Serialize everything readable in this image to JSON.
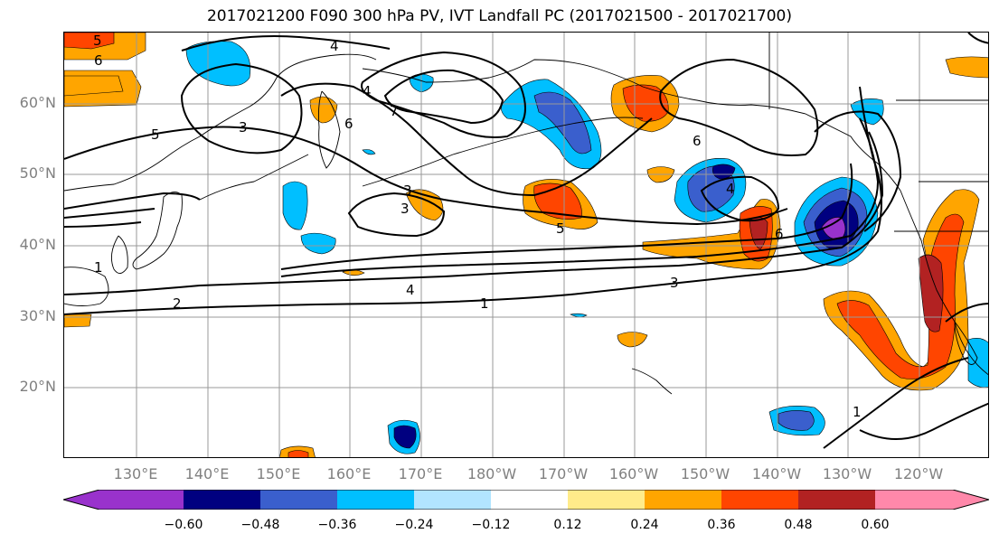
{
  "title": "2017021200 F090 300 hPa PV, IVT Landfall PC (2017021500 - 2017021700)",
  "lat_labels": [
    "60°N",
    "50°N",
    "40°N",
    "30°N",
    "20°N"
  ],
  "lon_labels": [
    "130°E",
    "140°E",
    "150°E",
    "160°E",
    "170°E",
    "180°W",
    "170°W",
    "160°W",
    "150°W",
    "140°W",
    "130°W",
    "120°W"
  ],
  "colorbar": {
    "tick_labels": [
      "−0.60",
      "−0.48",
      "−0.36",
      "−0.24",
      "−0.12",
      "0.12",
      "0.24",
      "0.36",
      "0.48",
      "0.60"
    ],
    "bins": [
      "#9932CC",
      "#000080",
      "#3A5FCD",
      "#00BFFF",
      "#B2E5FF",
      "#FFFFFF",
      "#FFEB8A",
      "#FFA500",
      "#FF4500",
      "#B22222",
      "#FF88AA"
    ]
  },
  "contour_labels": [
    "5",
    "6",
    "4",
    "7",
    "3",
    "5",
    "6",
    "3",
    "6",
    "4",
    "5",
    "4",
    "6",
    "3",
    "1",
    "4",
    "3",
    "1",
    "2",
    "1"
  ],
  "colors": {
    "purple": "#9932CC",
    "navy": "#000080",
    "blue": "#3A5FCD",
    "sky": "#00BFFF",
    "lightblue": "#B2E5FF",
    "yellow": "#FFEB8A",
    "orange": "#FFA500",
    "red": "#FF4500",
    "darkred": "#B22222",
    "pink": "#FF88AA"
  }
}
